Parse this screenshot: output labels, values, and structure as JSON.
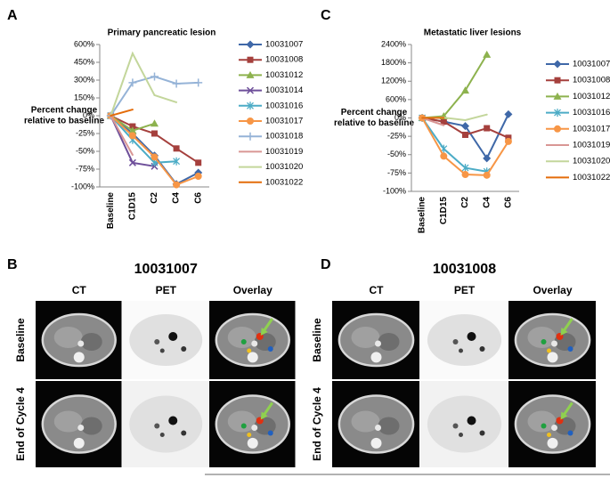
{
  "chart_data": [
    {
      "type": "line",
      "panel": "A",
      "title": "Primary pancreatic lesion",
      "ylabel": [
        "Percent change",
        "relative to baseline"
      ],
      "categories": [
        "Baseline",
        "C1D15",
        "C2",
        "C4",
        "C6"
      ],
      "ylim": [
        -100,
        600
      ],
      "yscale": "piecewise",
      "yticks": [
        {
          "value": -100,
          "label": "-100%"
        },
        {
          "value": -75,
          "label": "-75%"
        },
        {
          "value": -50,
          "label": "-50%"
        },
        {
          "value": -25,
          "label": "-25%"
        },
        {
          "value": 0,
          "label": "0%"
        },
        {
          "value": 150,
          "label": "150%"
        },
        {
          "value": 300,
          "label": "300%"
        },
        {
          "value": 450,
          "label": "450%"
        },
        {
          "value": 600,
          "label": "600%"
        }
      ],
      "series": [
        {
          "name": "10031007",
          "color": "#3f68a8",
          "marker": "diamond",
          "values": [
            0,
            -25,
            -56,
            -96,
            -80
          ]
        },
        {
          "name": "10031008",
          "color": "#a5403d",
          "marker": "square",
          "values": [
            0,
            -15,
            -25,
            -46,
            -66
          ]
        },
        {
          "name": "10031012",
          "color": "#8db24e",
          "marker": "triangle",
          "values": [
            0,
            -21,
            -11,
            null,
            null
          ]
        },
        {
          "name": "10031014",
          "color": "#6e4f9a",
          "marker": "x",
          "values": [
            0,
            -66,
            -71,
            null,
            null
          ]
        },
        {
          "name": "10031016",
          "color": "#4cacc6",
          "marker": "star",
          "values": [
            0,
            -34,
            -66,
            -64,
            null
          ]
        },
        {
          "name": "10031017",
          "color": "#f79646",
          "marker": "circle",
          "values": [
            0,
            -28,
            -58,
            -97,
            -85
          ]
        },
        {
          "name": "10031018",
          "color": "#95b3d7",
          "marker": "plus",
          "values": [
            0,
            278,
            330,
            270,
            278
          ]
        },
        {
          "name": "10031019",
          "color": "#d99694",
          "marker": "none",
          "values": [
            0,
            -55,
            null,
            null,
            null
          ]
        },
        {
          "name": "10031020",
          "color": "#c3d69b",
          "marker": "none",
          "values": [
            0,
            525,
            173,
            113,
            null
          ]
        },
        {
          "name": "10031022",
          "color": "#e46c0a",
          "marker": "none",
          "values": [
            0,
            52,
            null,
            null,
            null
          ]
        }
      ]
    },
    {
      "type": "line",
      "panel": "C",
      "title": "Metastatic liver lesions",
      "ylabel": [
        "Percent change",
        "relative to baseline"
      ],
      "categories": [
        "Baseline",
        "C1D15",
        "C2",
        "C4",
        "C6"
      ],
      "ylim": [
        -100,
        2400
      ],
      "yscale": "piecewise",
      "yticks": [
        {
          "value": -100,
          "label": "-100%"
        },
        {
          "value": -75,
          "label": "-75%"
        },
        {
          "value": -50,
          "label": "-50%"
        },
        {
          "value": -25,
          "label": "-25%"
        },
        {
          "value": 0,
          "label": "0%"
        },
        {
          "value": 600,
          "label": "600%"
        },
        {
          "value": 1200,
          "label": "1200%"
        },
        {
          "value": 1800,
          "label": "1800%"
        },
        {
          "value": 2400,
          "label": "2400%"
        }
      ],
      "series": [
        {
          "name": "10031007",
          "color": "#3f68a8",
          "marker": "diamond",
          "values": [
            0,
            -5,
            -11,
            -55,
            120
          ]
        },
        {
          "name": "10031008",
          "color": "#a5403d",
          "marker": "square",
          "values": [
            0,
            -5,
            -23,
            -14,
            -27
          ]
        },
        {
          "name": "10031012",
          "color": "#8db24e",
          "marker": "triangle",
          "values": [
            0,
            60,
            900,
            2070,
            null
          ]
        },
        {
          "name": "10031016",
          "color": "#4cacc6",
          "marker": "star",
          "values": [
            0,
            -42,
            -68,
            -73,
            null
          ]
        },
        {
          "name": "10031017",
          "color": "#f79646",
          "marker": "circle",
          "values": [
            0,
            -52,
            -77,
            -78,
            -32
          ]
        },
        {
          "name": "10031019",
          "color": "#d99694",
          "marker": "none",
          "values": [
            0,
            -10,
            null,
            null,
            null
          ]
        },
        {
          "name": "10031020",
          "color": "#c3d69b",
          "marker": "none",
          "values": [
            0,
            10,
            -3,
            110,
            null
          ]
        },
        {
          "name": "10031022",
          "color": "#e46c0a",
          "marker": "none",
          "values": [
            0,
            5,
            null,
            null,
            null
          ]
        }
      ]
    }
  ],
  "scans": [
    {
      "panel": "B",
      "title": "10031007",
      "columns": [
        "CT",
        "PET",
        "Overlay"
      ],
      "rows": [
        "Baseline",
        "End of Cycle 4"
      ]
    },
    {
      "panel": "D",
      "title": "10031008",
      "columns": [
        "CT",
        "PET",
        "Overlay"
      ],
      "rows": [
        "Baseline",
        "End of Cycle 4"
      ]
    }
  ]
}
